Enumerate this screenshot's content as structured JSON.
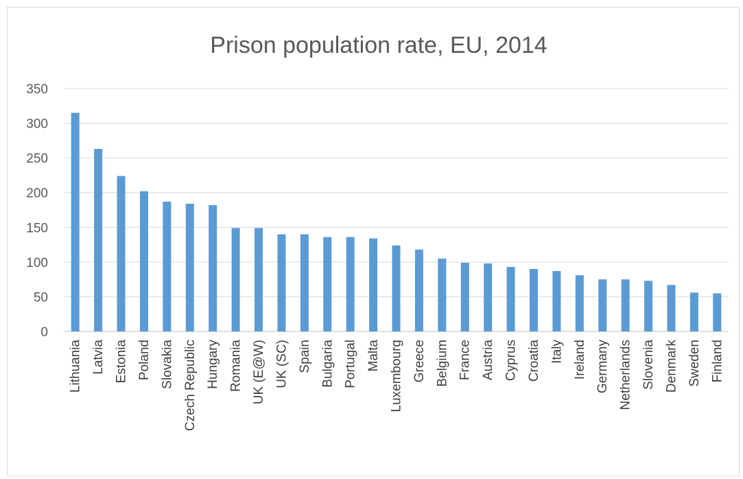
{
  "chart_data": {
    "type": "bar",
    "title": "Prison population rate, EU, 2014",
    "xlabel": "",
    "ylabel": "",
    "ylim": [
      0,
      350
    ],
    "yticks": [
      0,
      50,
      100,
      150,
      200,
      250,
      300,
      350
    ],
    "grid": true,
    "legend": "none",
    "bar_color": "#5b9bd5",
    "categories": [
      "Lithuania",
      "Latvia",
      "Estonia",
      "Poland",
      "Slovakia",
      "Czech Republic",
      "Hungary",
      "Romania",
      "UK (E@W)",
      "UK (SC)",
      "Spain",
      "Bulgaria",
      "Portugal",
      "Malta",
      "Luxembourg",
      "Greece",
      "Belgium",
      "France",
      "Austria",
      "Cyprus",
      "Croatia",
      "Italy",
      "Ireland",
      "Germany",
      "Netherlands",
      "Slovenia",
      "Denmark",
      "Sweden",
      "Finland"
    ],
    "values": [
      315,
      263,
      224,
      202,
      187,
      184,
      182,
      149,
      149,
      140,
      140,
      136,
      136,
      134,
      124,
      118,
      105,
      99,
      98,
      93,
      90,
      87,
      81,
      75,
      75,
      73,
      67,
      56,
      55
    ]
  }
}
